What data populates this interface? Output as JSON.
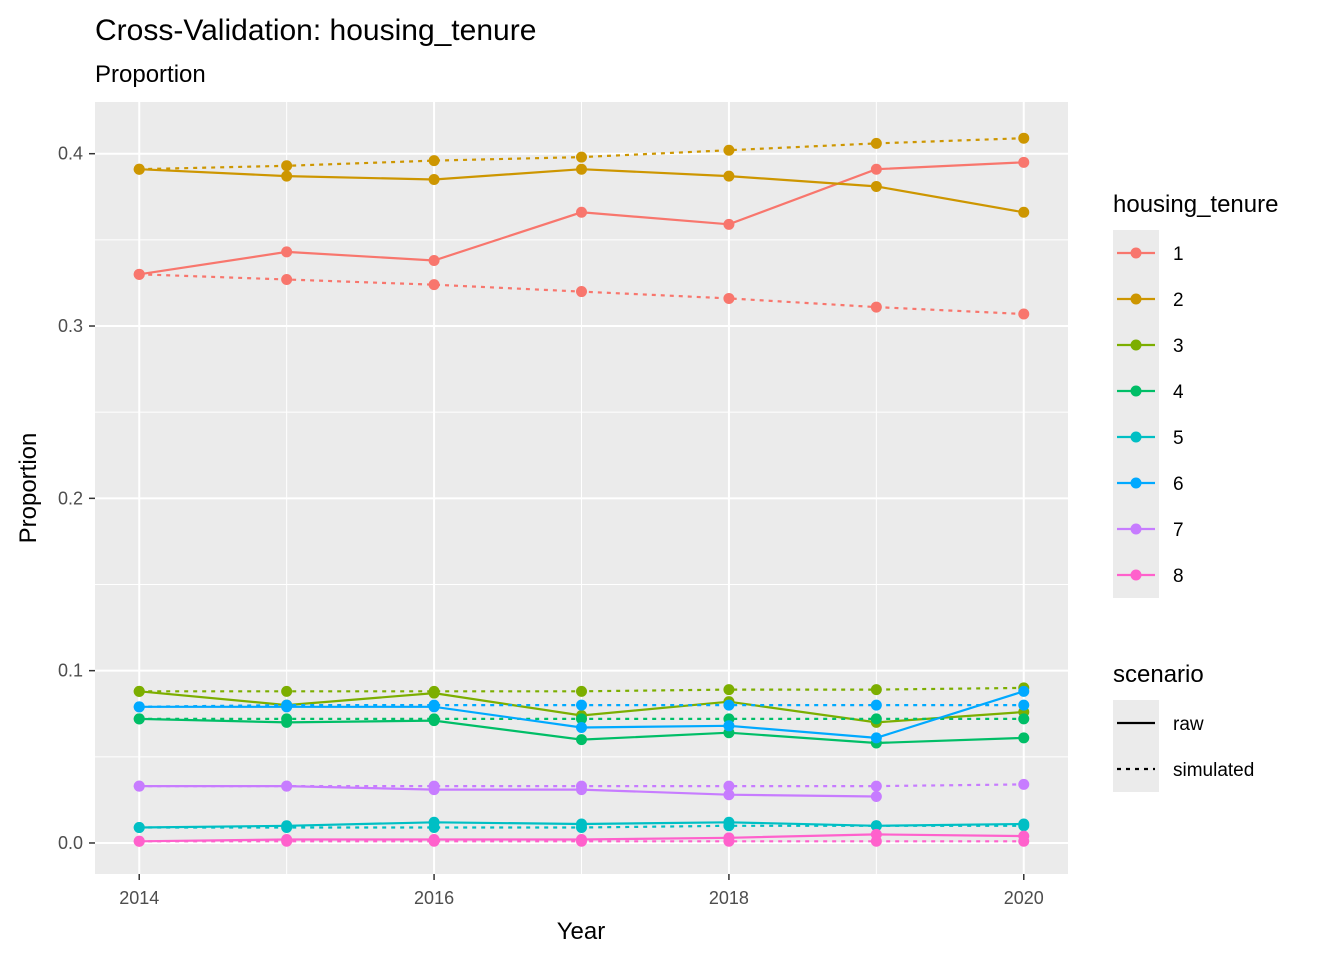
{
  "chart_data": {
    "type": "line",
    "title": "Cross-Validation: housing_tenure",
    "subtitle": "Proportion",
    "xlabel": "Year",
    "ylabel": "Proportion",
    "xlim": [
      2013.7,
      2020.3
    ],
    "ylim": [
      -0.018,
      0.43
    ],
    "x_ticks": [
      2014,
      2016,
      2018,
      2020
    ],
    "y_ticks": [
      0.0,
      0.1,
      0.2,
      0.3,
      0.4
    ],
    "y_tick_labels": [
      "0.0",
      "0.1",
      "0.2",
      "0.3",
      "0.4"
    ],
    "grid": true,
    "legend_position": "right",
    "legend_color_title": "housing_tenure",
    "legend_linetype_title": "scenario",
    "x": [
      2014,
      2015,
      2016,
      2017,
      2018,
      2019,
      2020
    ],
    "series": [
      {
        "name": "1",
        "color": "#F8766D",
        "raw": [
          0.33,
          0.343,
          0.338,
          0.366,
          0.359,
          0.391,
          0.395
        ],
        "simulated": [
          0.33,
          0.327,
          0.324,
          0.32,
          0.316,
          0.311,
          0.307
        ]
      },
      {
        "name": "2",
        "color": "#CD9600",
        "raw": [
          0.391,
          0.387,
          0.385,
          0.391,
          0.387,
          0.381,
          0.366
        ],
        "simulated": [
          0.391,
          0.393,
          0.396,
          0.398,
          0.402,
          0.406,
          0.409
        ]
      },
      {
        "name": "3",
        "color": "#7CAE00",
        "raw": [
          0.088,
          0.08,
          0.087,
          0.074,
          0.082,
          0.07,
          0.076
        ],
        "simulated": [
          0.088,
          0.088,
          0.088,
          0.088,
          0.089,
          0.089,
          0.09
        ]
      },
      {
        "name": "4",
        "color": "#00BE67",
        "raw": [
          0.072,
          0.07,
          0.071,
          0.06,
          0.064,
          0.058,
          0.061
        ],
        "simulated": [
          0.072,
          0.072,
          0.072,
          0.072,
          0.072,
          0.072,
          0.072
        ]
      },
      {
        "name": "5",
        "color": "#00BFC4",
        "raw": [
          0.009,
          0.01,
          0.012,
          0.011,
          0.012,
          0.01,
          0.011
        ],
        "simulated": [
          0.009,
          0.009,
          0.009,
          0.009,
          0.01,
          0.01,
          0.01
        ]
      },
      {
        "name": "6",
        "color": "#00A9FF",
        "raw": [
          0.079,
          0.079,
          0.079,
          0.067,
          0.068,
          0.061,
          0.088
        ],
        "simulated": [
          0.079,
          0.08,
          0.08,
          0.08,
          0.08,
          0.08,
          0.08
        ]
      },
      {
        "name": "7",
        "color": "#C77CFF",
        "raw": [
          0.033,
          0.033,
          0.031,
          0.031,
          0.028,
          0.027,
          null
        ],
        "simulated": [
          0.033,
          0.033,
          0.033,
          0.033,
          0.033,
          0.033,
          0.034
        ]
      },
      {
        "name": "8",
        "color": "#FF61CC",
        "raw": [
          0.001,
          0.002,
          0.002,
          0.002,
          0.003,
          0.005,
          0.004
        ],
        "simulated": [
          0.001,
          0.001,
          0.001,
          0.001,
          0.001,
          0.001,
          0.001
        ]
      }
    ],
    "scenarios": [
      {
        "name": "raw",
        "dash": "solid"
      },
      {
        "name": "simulated",
        "dash": "dotted"
      }
    ]
  }
}
